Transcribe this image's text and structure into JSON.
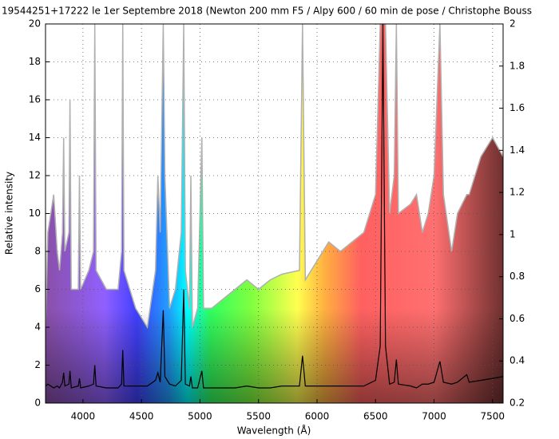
{
  "chart_data": {
    "type": "line",
    "title": "19544251+17222  le 1er Septembre 2018 (Newton 200 mm F5 / Alpy 600 / 60 min de pose / Christophe Bouss",
    "x_label": "Wavelength (Å)",
    "y_label": "Relative intensity",
    "x": [
      3680,
      3700,
      3750,
      3780,
      3800,
      3825,
      3835,
      3845,
      3880,
      3889,
      3900,
      3960,
      3970,
      3980,
      4050,
      4090,
      4101,
      4112,
      4200,
      4300,
      4330,
      4340,
      4350,
      4450,
      4550,
      4620,
      4640,
      4660,
      4686,
      4700,
      4740,
      4790,
      4840,
      4861,
      4875,
      4910,
      4922,
      4935,
      4980,
      5016,
      5030,
      5100,
      5200,
      5300,
      5400,
      5500,
      5600,
      5700,
      5850,
      5876,
      5900,
      6000,
      6100,
      6200,
      6300,
      6400,
      6500,
      6540,
      6563,
      6585,
      6620,
      6660,
      6678,
      6695,
      6800,
      6850,
      6900,
      6950,
      7000,
      7050,
      7080,
      7150,
      7200,
      7280,
      7300,
      7400,
      7500,
      7590
    ],
    "series": [
      {
        "color": "#b0b0b0",
        "values": [
          4,
          9,
          11,
          8,
          7,
          9,
          14,
          8,
          9,
          16,
          6,
          6,
          12,
          6,
          7,
          8,
          20,
          7,
          6,
          6,
          8,
          20,
          7,
          5,
          4,
          7,
          12,
          9,
          20,
          12,
          5,
          6,
          9,
          20,
          7,
          5,
          12,
          4,
          5,
          14,
          5,
          5,
          5.5,
          6,
          6.5,
          6,
          6.5,
          6.8,
          7,
          20,
          6.5,
          7.5,
          8.5,
          8,
          8.5,
          9,
          11,
          20,
          20,
          20,
          10,
          12,
          20,
          10,
          10.5,
          11,
          9,
          10,
          12,
          20,
          11,
          8,
          10,
          11,
          11,
          13,
          14,
          13
        ]
      },
      {
        "color": "#000000",
        "values": [
          0.9,
          1.0,
          0.8,
          0.9,
          0.8,
          1.1,
          1.6,
          0.9,
          1.0,
          1.7,
          0.8,
          0.9,
          1.3,
          0.8,
          0.9,
          1.0,
          2.0,
          0.9,
          0.8,
          0.8,
          1.0,
          2.8,
          0.9,
          0.9,
          0.9,
          1.2,
          1.6,
          1.1,
          4.9,
          1.4,
          1.0,
          0.9,
          1.2,
          6.0,
          1.0,
          0.9,
          1.4,
          0.8,
          0.8,
          1.7,
          0.8,
          0.8,
          0.8,
          0.8,
          0.9,
          0.8,
          0.8,
          0.9,
          0.9,
          2.5,
          0.9,
          0.9,
          0.9,
          0.9,
          0.9,
          0.9,
          1.2,
          3,
          20,
          3,
          1.0,
          1.1,
          2.3,
          1.0,
          0.9,
          0.8,
          1.0,
          1.0,
          1.1,
          2.2,
          1.1,
          1.0,
          1.1,
          1.5,
          1.1,
          1.2,
          1.3,
          1.4
        ]
      }
    ],
    "xlim": [
      3680,
      7590
    ],
    "xticks": [
      4000,
      4500,
      5000,
      5500,
      6000,
      6500,
      7000,
      7500
    ],
    "ylim": [
      0,
      20
    ],
    "yticks": [
      0,
      2,
      4,
      6,
      8,
      10,
      12,
      14,
      16,
      18,
      20
    ],
    "y2lim": [
      0.2,
      2
    ],
    "y2ticks": [
      0.2,
      0.4,
      0.6,
      0.8,
      1,
      1.2,
      1.4,
      1.6,
      1.8,
      2
    ],
    "grid": true
  }
}
